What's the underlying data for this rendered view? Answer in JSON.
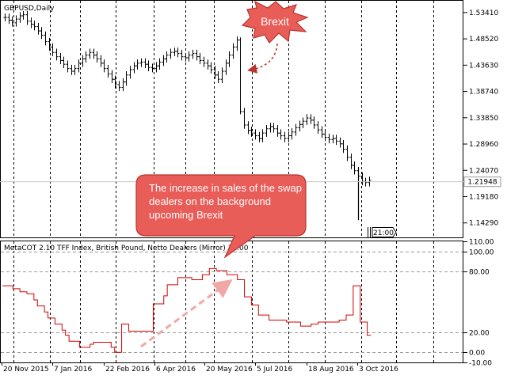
{
  "chart_data": [
    {
      "type": "ohlc",
      "title": "GBPUSD,Daily",
      "current_price": "1.21948",
      "timer": "21:00",
      "ylim": [
        1.116,
        1.556
      ],
      "yticks": [
        "1.53410",
        "1.48520",
        "1.43630",
        "1.38740",
        "1.33850",
        "1.28960",
        "1.24070",
        "1.19180",
        "1.14290"
      ],
      "price_line_color": "#000000",
      "close_series": [
        1.525,
        1.52,
        1.515,
        1.522,
        1.528,
        1.53,
        1.518,
        1.512,
        1.508,
        1.5,
        1.492,
        1.48,
        1.47,
        1.46,
        1.452,
        1.445,
        1.438,
        1.43,
        1.425,
        1.43,
        1.44,
        1.448,
        1.455,
        1.46,
        1.455,
        1.448,
        1.44,
        1.43,
        1.42,
        1.41,
        1.4,
        1.395,
        1.405,
        1.418,
        1.428,
        1.435,
        1.44,
        1.442,
        1.438,
        1.432,
        1.43,
        1.435,
        1.442,
        1.448,
        1.455,
        1.46,
        1.462,
        1.458,
        1.452,
        1.45,
        1.455,
        1.458,
        1.452,
        1.445,
        1.44,
        1.435,
        1.428,
        1.418,
        1.41,
        1.425,
        1.44,
        1.455,
        1.47,
        1.483,
        1.35,
        1.325,
        1.315,
        1.31,
        1.305,
        1.3,
        1.31,
        1.318,
        1.322,
        1.318,
        1.31,
        1.305,
        1.3,
        1.305,
        1.312,
        1.32,
        1.326,
        1.332,
        1.338,
        1.334,
        1.325,
        1.316,
        1.308,
        1.302,
        1.298,
        1.3,
        1.295,
        1.29,
        1.28,
        1.265,
        1.25,
        1.24,
        1.23,
        1.22,
        1.218,
        1.222
      ]
    },
    {
      "type": "line",
      "title": "MetaCOT 2.10 TFF Index, British Pound, Netto Dealers (Mirror) 16.00",
      "ylim": [
        -10,
        110
      ],
      "yticks": [
        "110.00",
        "100.00",
        "80.00",
        "20.00",
        "0.00",
        "-10.00"
      ],
      "line_color": "#d40000",
      "series": [
        {
          "values": [
            66,
            66,
            66,
            63,
            63,
            60,
            60,
            58,
            58,
            52,
            46,
            46,
            40,
            34,
            34,
            28,
            28,
            22,
            17,
            11,
            11,
            11,
            5,
            5,
            5,
            8,
            10,
            10,
            10,
            10,
            10,
            5,
            0,
            0,
            28,
            28,
            21,
            21,
            21,
            21,
            21,
            21,
            21,
            48,
            48,
            48,
            56,
            67,
            67,
            67,
            74,
            74,
            74,
            74,
            72,
            72,
            72,
            77,
            77,
            83,
            83,
            81,
            81,
            81,
            77,
            77,
            77,
            72,
            72,
            55,
            55,
            47,
            47,
            37,
            37,
            37,
            32,
            32,
            32,
            32,
            32,
            30,
            30,
            30,
            30,
            26,
            26,
            26,
            28,
            28,
            30,
            30,
            30,
            30,
            30,
            30,
            32,
            32,
            37,
            37,
            66,
            66,
            30,
            30,
            17,
            17
          ]
        }
      ]
    }
  ],
  "xaxis": {
    "dates": [
      "20 Nov 2015",
      "7 Jan 2016",
      "22 Feb 2016",
      "6 Apr 2016",
      "20 May 2016",
      "5 Jul 2016",
      "18 Aug 2016",
      "3 Oct 2016"
    ]
  },
  "annotations": {
    "brexit_label": "Brexit",
    "callout_text": "The increase in sales of the swap dealers on the background upcoming Brexit"
  },
  "colors": {
    "background": "#ffffff",
    "grid": "#000000",
    "annotation_fill": "#e85d58",
    "annotation_stroke": "#b83430",
    "annotation_text": "#ffffff",
    "arrow": "#f0a8a6"
  }
}
